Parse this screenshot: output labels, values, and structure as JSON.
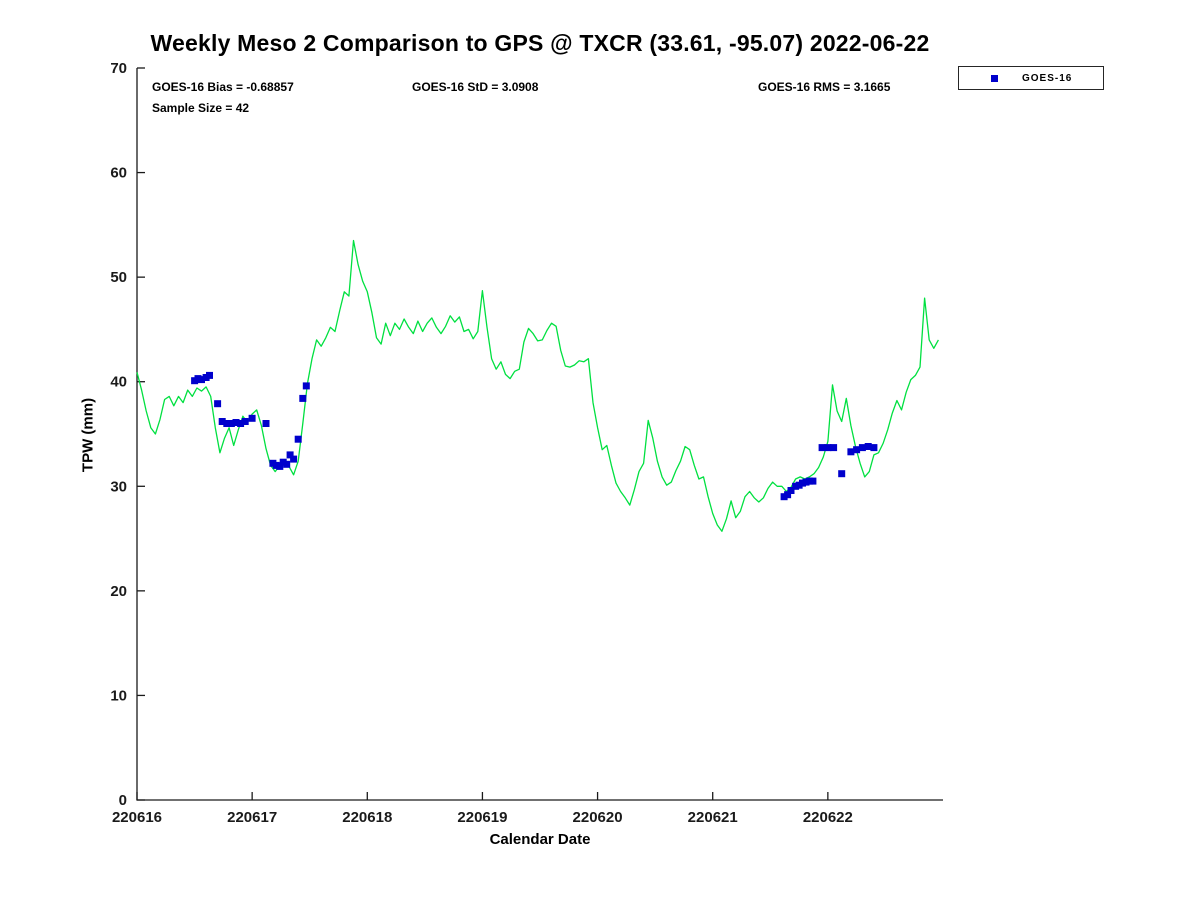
{
  "title": "Weekly Meso 2 Comparison to GPS @ TXCR (33.61, -95.07) 2022-06-22",
  "annotations": {
    "bias": "GOES-16 Bias = -0.68857",
    "std": "GOES-16 StD = 3.0908",
    "rms": "GOES-16 RMS = 3.1665",
    "sample_size": "Sample Size = 42"
  },
  "legend": {
    "entries": [
      {
        "label": "GOES-16",
        "marker": "square",
        "color": "#0000CC"
      }
    ]
  },
  "chart_data": {
    "type": "line",
    "title": "Weekly Meso 2 Comparison to GPS @ TXCR (33.61, -95.07) 2022-06-22",
    "xlabel": "Calendar Date",
    "ylabel": "TPW (mm)",
    "xlim": [
      220616,
      220623
    ],
    "ylim": [
      0,
      70
    ],
    "xticks": [
      220616,
      220617,
      220618,
      220619,
      220620,
      220621,
      220622
    ],
    "yticks": [
      0,
      10,
      20,
      30,
      40,
      50,
      60,
      70
    ],
    "grid": false,
    "legend_position": "top-right",
    "series": [
      {
        "name": "GPS",
        "type": "line",
        "color": "#00E040",
        "points": [
          [
            220616.0,
            40.9
          ],
          [
            220616.04,
            39.2
          ],
          [
            220616.08,
            37.2
          ],
          [
            220616.12,
            35.6
          ],
          [
            220616.16,
            35.0
          ],
          [
            220616.2,
            36.4
          ],
          [
            220616.24,
            38.3
          ],
          [
            220616.28,
            38.6
          ],
          [
            220616.32,
            37.7
          ],
          [
            220616.36,
            38.6
          ],
          [
            220616.4,
            38.0
          ],
          [
            220616.44,
            39.2
          ],
          [
            220616.48,
            38.6
          ],
          [
            220616.52,
            39.4
          ],
          [
            220616.56,
            39.1
          ],
          [
            220616.6,
            39.5
          ],
          [
            220616.64,
            38.6
          ],
          [
            220616.68,
            35.6
          ],
          [
            220616.72,
            33.2
          ],
          [
            220616.76,
            34.6
          ],
          [
            220616.8,
            35.6
          ],
          [
            220616.84,
            33.9
          ],
          [
            220616.88,
            35.4
          ],
          [
            220616.92,
            36.7
          ],
          [
            220616.96,
            36.1
          ],
          [
            220617.0,
            36.9
          ],
          [
            220617.04,
            37.3
          ],
          [
            220617.08,
            35.8
          ],
          [
            220617.12,
            33.6
          ],
          [
            220617.16,
            32.0
          ],
          [
            220617.2,
            31.4
          ],
          [
            220617.24,
            32.0
          ],
          [
            220617.28,
            32.5
          ],
          [
            220617.32,
            31.9
          ],
          [
            220617.36,
            31.1
          ],
          [
            220617.4,
            32.4
          ],
          [
            220617.44,
            36.0
          ],
          [
            220617.48,
            39.8
          ],
          [
            220617.52,
            42.2
          ],
          [
            220617.56,
            44.0
          ],
          [
            220617.6,
            43.4
          ],
          [
            220617.64,
            44.2
          ],
          [
            220617.68,
            45.2
          ],
          [
            220617.72,
            44.8
          ],
          [
            220617.76,
            46.8
          ],
          [
            220617.8,
            48.6
          ],
          [
            220617.84,
            48.2
          ],
          [
            220617.88,
            53.5
          ],
          [
            220617.92,
            51.2
          ],
          [
            220617.96,
            49.6
          ],
          [
            220618.0,
            48.6
          ],
          [
            220618.04,
            46.6
          ],
          [
            220618.08,
            44.2
          ],
          [
            220618.12,
            43.6
          ],
          [
            220618.16,
            45.6
          ],
          [
            220618.2,
            44.4
          ],
          [
            220618.24,
            45.6
          ],
          [
            220618.28,
            45.0
          ],
          [
            220618.32,
            46.0
          ],
          [
            220618.36,
            45.2
          ],
          [
            220618.4,
            44.6
          ],
          [
            220618.44,
            45.8
          ],
          [
            220618.48,
            44.8
          ],
          [
            220618.52,
            45.6
          ],
          [
            220618.56,
            46.1
          ],
          [
            220618.6,
            45.2
          ],
          [
            220618.64,
            44.6
          ],
          [
            220618.68,
            45.3
          ],
          [
            220618.72,
            46.3
          ],
          [
            220618.76,
            45.7
          ],
          [
            220618.8,
            46.2
          ],
          [
            220618.84,
            44.8
          ],
          [
            220618.88,
            45.0
          ],
          [
            220618.92,
            44.1
          ],
          [
            220618.96,
            44.8
          ],
          [
            220619.0,
            48.7
          ],
          [
            220619.04,
            45.2
          ],
          [
            220619.08,
            42.2
          ],
          [
            220619.12,
            41.2
          ],
          [
            220619.16,
            41.9
          ],
          [
            220619.2,
            40.7
          ],
          [
            220619.24,
            40.3
          ],
          [
            220619.28,
            41.0
          ],
          [
            220619.32,
            41.2
          ],
          [
            220619.36,
            43.8
          ],
          [
            220619.4,
            45.1
          ],
          [
            220619.44,
            44.6
          ],
          [
            220619.48,
            43.9
          ],
          [
            220619.52,
            44.0
          ],
          [
            220619.56,
            44.9
          ],
          [
            220619.6,
            45.6
          ],
          [
            220619.64,
            45.3
          ],
          [
            220619.68,
            43.0
          ],
          [
            220619.72,
            41.5
          ],
          [
            220619.76,
            41.4
          ],
          [
            220619.8,
            41.6
          ],
          [
            220619.84,
            42.0
          ],
          [
            220619.88,
            41.9
          ],
          [
            220619.92,
            42.2
          ],
          [
            220619.96,
            38.0
          ],
          [
            220620.0,
            35.6
          ],
          [
            220620.04,
            33.5
          ],
          [
            220620.08,
            33.9
          ],
          [
            220620.12,
            32.0
          ],
          [
            220620.16,
            30.3
          ],
          [
            220620.2,
            29.5
          ],
          [
            220620.24,
            28.9
          ],
          [
            220620.28,
            28.2
          ],
          [
            220620.32,
            29.7
          ],
          [
            220620.36,
            31.4
          ],
          [
            220620.4,
            32.2
          ],
          [
            220620.44,
            36.3
          ],
          [
            220620.48,
            34.6
          ],
          [
            220620.52,
            32.4
          ],
          [
            220620.56,
            30.9
          ],
          [
            220620.6,
            30.1
          ],
          [
            220620.64,
            30.4
          ],
          [
            220620.68,
            31.5
          ],
          [
            220620.72,
            32.4
          ],
          [
            220620.76,
            33.8
          ],
          [
            220620.8,
            33.5
          ],
          [
            220620.84,
            32.0
          ],
          [
            220620.88,
            30.7
          ],
          [
            220620.92,
            30.9
          ],
          [
            220620.96,
            29.0
          ],
          [
            220621.0,
            27.4
          ],
          [
            220621.04,
            26.3
          ],
          [
            220621.08,
            25.7
          ],
          [
            220621.12,
            26.9
          ],
          [
            220621.16,
            28.6
          ],
          [
            220621.2,
            27.0
          ],
          [
            220621.24,
            27.6
          ],
          [
            220621.28,
            29.0
          ],
          [
            220621.32,
            29.5
          ],
          [
            220621.36,
            28.9
          ],
          [
            220621.4,
            28.5
          ],
          [
            220621.44,
            28.9
          ],
          [
            220621.48,
            29.8
          ],
          [
            220621.52,
            30.4
          ],
          [
            220621.56,
            30.0
          ],
          [
            220621.6,
            30.0
          ],
          [
            220621.64,
            29.5
          ],
          [
            220621.68,
            29.9
          ],
          [
            220621.72,
            30.7
          ],
          [
            220621.76,
            30.9
          ],
          [
            220621.8,
            30.7
          ],
          [
            220621.84,
            30.9
          ],
          [
            220621.88,
            31.2
          ],
          [
            220621.92,
            31.8
          ],
          [
            220621.96,
            32.8
          ],
          [
            220622.0,
            34.3
          ],
          [
            220622.04,
            39.7
          ],
          [
            220622.08,
            37.2
          ],
          [
            220622.12,
            36.2
          ],
          [
            220622.16,
            38.4
          ],
          [
            220622.2,
            35.8
          ],
          [
            220622.24,
            33.8
          ],
          [
            220622.28,
            32.2
          ],
          [
            220622.32,
            30.9
          ],
          [
            220622.36,
            31.4
          ],
          [
            220622.4,
            33.0
          ],
          [
            220622.44,
            33.2
          ],
          [
            220622.48,
            34.1
          ],
          [
            220622.52,
            35.4
          ],
          [
            220622.56,
            37.0
          ],
          [
            220622.6,
            38.2
          ],
          [
            220622.64,
            37.3
          ],
          [
            220622.68,
            39.0
          ],
          [
            220622.72,
            40.2
          ],
          [
            220622.76,
            40.6
          ],
          [
            220622.8,
            41.4
          ],
          [
            220622.84,
            48.0
          ],
          [
            220622.88,
            44.0
          ],
          [
            220622.92,
            43.2
          ],
          [
            220622.96,
            44.0
          ]
        ]
      },
      {
        "name": "GOES-16",
        "type": "scatter",
        "marker": "square",
        "color": "#0000CC",
        "points": [
          [
            220616.5,
            40.1
          ],
          [
            220616.53,
            40.3
          ],
          [
            220616.56,
            40.2
          ],
          [
            220616.6,
            40.4
          ],
          [
            220616.63,
            40.6
          ],
          [
            220616.7,
            37.9
          ],
          [
            220616.74,
            36.2
          ],
          [
            220616.78,
            36.0
          ],
          [
            220616.82,
            36.0
          ],
          [
            220616.86,
            36.1
          ],
          [
            220616.9,
            36.0
          ],
          [
            220616.94,
            36.2
          ],
          [
            220617.0,
            36.5
          ],
          [
            220617.12,
            36.0
          ],
          [
            220617.18,
            32.2
          ],
          [
            220617.21,
            32.0
          ],
          [
            220617.24,
            31.9
          ],
          [
            220617.27,
            32.3
          ],
          [
            220617.3,
            32.1
          ],
          [
            220617.33,
            33.0
          ],
          [
            220617.36,
            32.6
          ],
          [
            220617.4,
            34.5
          ],
          [
            220617.44,
            38.4
          ],
          [
            220617.47,
            39.6
          ],
          [
            220621.62,
            29.0
          ],
          [
            220621.65,
            29.2
          ],
          [
            220621.68,
            29.6
          ],
          [
            220621.72,
            30.0
          ],
          [
            220621.75,
            30.1
          ],
          [
            220621.78,
            30.3
          ],
          [
            220621.81,
            30.4
          ],
          [
            220621.84,
            30.5
          ],
          [
            220621.87,
            30.5
          ],
          [
            220621.95,
            33.7
          ],
          [
            220622.0,
            33.7
          ],
          [
            220622.05,
            33.7
          ],
          [
            220622.12,
            31.2
          ],
          [
            220622.2,
            33.3
          ],
          [
            220622.25,
            33.5
          ],
          [
            220622.3,
            33.7
          ],
          [
            220622.35,
            33.8
          ],
          [
            220622.4,
            33.7
          ]
        ]
      }
    ]
  }
}
